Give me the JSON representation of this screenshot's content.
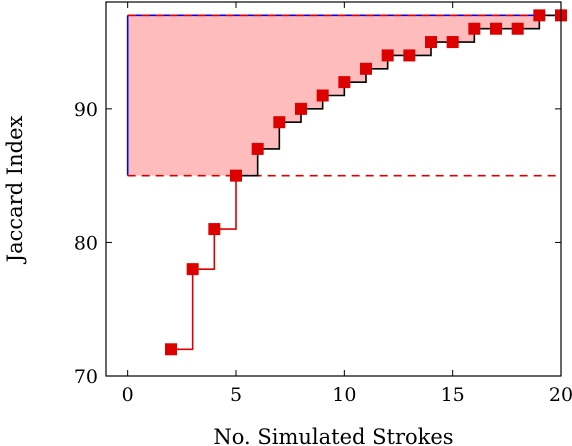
{
  "chart_data": {
    "type": "line",
    "title": "",
    "xlabel": "No. Simulated Strokes",
    "ylabel": "Jaccard Index",
    "xlim": [
      -1,
      20
    ],
    "ylim": [
      70,
      98
    ],
    "x_ticks": [
      0,
      5,
      10,
      15,
      20
    ],
    "y_ticks": [
      70,
      80,
      90
    ],
    "grid": false,
    "legend": "none",
    "series": [
      {
        "style": "step-line-with-square-markers",
        "color": "#dd0000",
        "x": [
          2,
          3,
          4,
          5,
          6,
          7,
          8,
          9,
          10,
          11,
          12,
          13,
          14,
          15,
          16,
          17,
          18,
          19,
          20
        ],
        "y": [
          72,
          78,
          81,
          85,
          87,
          89,
          90,
          91,
          92,
          93,
          94,
          94,
          95,
          95,
          96,
          96,
          96,
          97,
          97
        ]
      }
    ],
    "reference_lines": [
      {
        "orientation": "horizontal",
        "y": 85,
        "color": "#dd0000",
        "dash": "dashed"
      },
      {
        "orientation": "horizontal",
        "y": 97,
        "color": "#dd0000",
        "dash": "dashed"
      }
    ],
    "shaded_region": {
      "fill": "#ffbcbc",
      "edge_color": "#0000ff",
      "x_start": 0,
      "y_low": 85,
      "y_high": 97
    },
    "step_colors": {
      "below_threshold": "#dd0000",
      "above_threshold": "#000000"
    }
  }
}
